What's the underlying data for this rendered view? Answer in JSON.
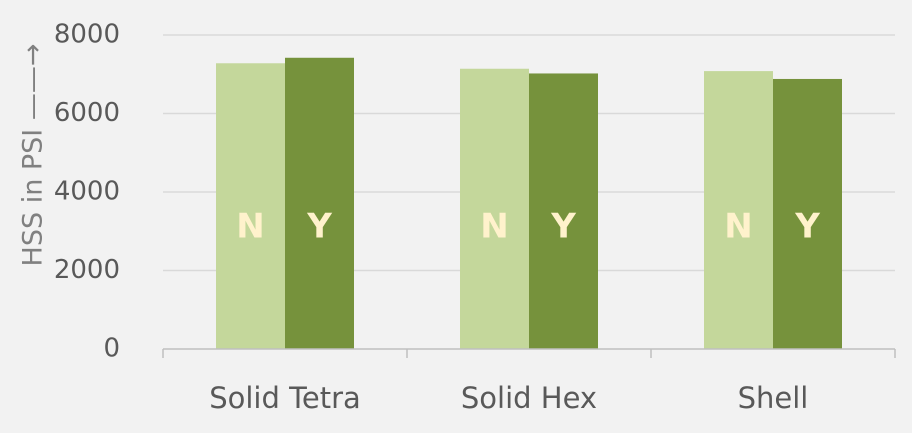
{
  "chart_data": {
    "type": "bar",
    "categories": [
      "Solid Tetra",
      "Solid Hex",
      "Shell"
    ],
    "series": [
      {
        "values": [
          7280,
          7140,
          7080
        ],
        "bar_label": "N",
        "color": "#c4d79b",
        "label_color": "#fff2cc"
      },
      {
        "values": [
          7420,
          7020,
          6880
        ],
        "bar_label": "Y",
        "color": "#76923c",
        "label_color": "#fff2cc"
      }
    ],
    "ylabel": "HSS in PSI ——→",
    "ylim": [
      0,
      8000
    ],
    "yticks": [
      0,
      2000,
      4000,
      6000,
      8000
    ],
    "grid": true,
    "gridline_color": "#d9d9d9",
    "axis_color": "#bfbfbf"
  }
}
